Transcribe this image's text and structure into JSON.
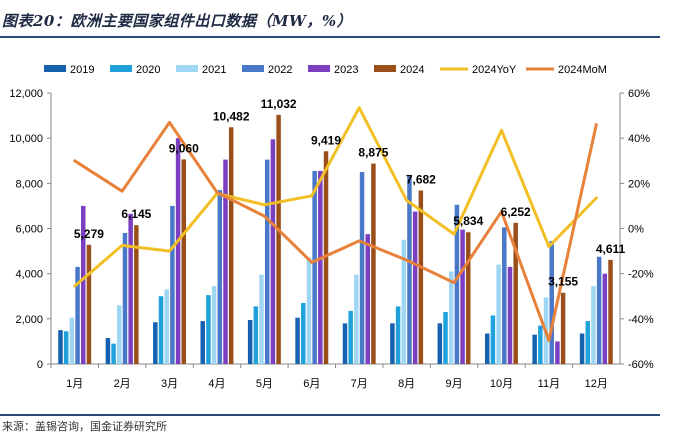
{
  "title": "图表20：欧洲主要国家组件出口数据（MW，%）",
  "source": "来源：盖锡咨询，国金证券研究所",
  "chart_data": {
    "type": "bar",
    "categories": [
      "1月",
      "2月",
      "3月",
      "4月",
      "5月",
      "6月",
      "7月",
      "8月",
      "9月",
      "10月",
      "11月",
      "12月"
    ],
    "series": [
      {
        "name": "2019",
        "type": "bar",
        "axis": "left",
        "color": "#1660b0",
        "values": [
          1500,
          1150,
          1850,
          1900,
          1950,
          2050,
          1800,
          1800,
          1800,
          1350,
          1300,
          1350
        ]
      },
      {
        "name": "2020",
        "type": "bar",
        "axis": "left",
        "color": "#1fa2dc",
        "values": [
          1450,
          900,
          3000,
          3050,
          2550,
          2700,
          2350,
          2550,
          2300,
          2150,
          1700,
          1900
        ]
      },
      {
        "name": "2021",
        "type": "bar",
        "axis": "left",
        "color": "#9fd6f3",
        "values": [
          2050,
          2600,
          3300,
          3450,
          3950,
          4700,
          3950,
          5500,
          4100,
          4400,
          2950,
          3450
        ]
      },
      {
        "name": "2022",
        "type": "bar",
        "axis": "left",
        "color": "#4a78c8",
        "values": [
          4300,
          5800,
          7000,
          7700,
          9050,
          8550,
          8500,
          8300,
          7050,
          6050,
          5450,
          4750
        ]
      },
      {
        "name": "2023",
        "type": "bar",
        "axis": "left",
        "color": "#7b3fc0",
        "values": [
          7000,
          6650,
          10000,
          9050,
          9950,
          8550,
          5750,
          6750,
          5950,
          4300,
          1000,
          4000
        ]
      },
      {
        "name": "2024",
        "type": "bar",
        "axis": "left",
        "color": "#9a4f1a",
        "values": [
          5279,
          6145,
          9060,
          10482,
          11032,
          9419,
          8875,
          7682,
          5834,
          6252,
          3155,
          4611
        ],
        "labels": [
          "5,279",
          "6,145",
          "9,060",
          "10,482",
          "11,032",
          "9,419",
          "8,875",
          "7,682",
          "5,834",
          "6,252",
          "3,155",
          "4,611"
        ]
      },
      {
        "name": "2024YoY",
        "type": "line",
        "axis": "right",
        "color": "#f2bf24",
        "values": [
          -25.5,
          -7.5,
          -10,
          15.5,
          10.5,
          14.5,
          53.5,
          12.5,
          -2.5,
          43.5,
          -8,
          13.5
        ]
      },
      {
        "name": "2024MoM",
        "type": "line",
        "axis": "right",
        "color": "#e8813a",
        "values": [
          30,
          16.5,
          47,
          16,
          5.5,
          -15,
          -5.5,
          -14,
          -24,
          7.5,
          -49.5,
          46
        ]
      }
    ],
    "yleft": {
      "min": 0,
      "max": 12000,
      "ticks": [
        "0",
        "2,000",
        "4,000",
        "6,000",
        "8,000",
        "10,000",
        "12,000"
      ],
      "tick_values": [
        0,
        2000,
        4000,
        6000,
        8000,
        10000,
        12000
      ]
    },
    "yright": {
      "min": -60,
      "max": 60,
      "ticks": [
        "-60%",
        "-40%",
        "-20%",
        "0%",
        "20%",
        "40%",
        "60%"
      ],
      "tick_values": [
        -60,
        -40,
        -20,
        0,
        20,
        40,
        60
      ]
    },
    "legend_position": "top",
    "grid": false
  }
}
